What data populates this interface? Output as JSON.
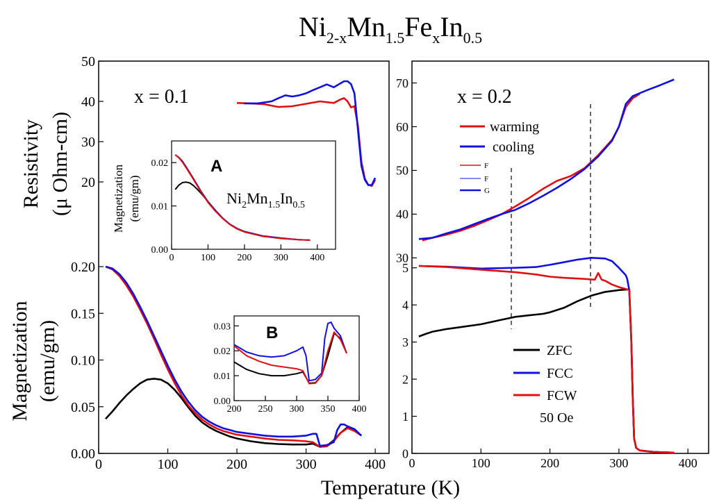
{
  "figure": {
    "title_base": [
      "Ni",
      "Mn",
      "Fe",
      "In"
    ],
    "title_subs": [
      "2-x",
      "1.5",
      "x",
      "0.5"
    ],
    "xlabel": "Temperature (K)"
  },
  "left": {
    "annotation": "x = 0.1",
    "top_ylabel_line1": "Resistivity",
    "top_ylabel_line2": "(μ Ohm-cm)",
    "bottom_ylabel_line1": "Magnetization",
    "bottom_ylabel_line2": "(emu/gm)",
    "inset_a_label": "A",
    "inset_a_ylabel_line1": "Magnetization",
    "inset_a_ylabel_line2": "(emu/gm)",
    "inset_a_compound": [
      "Ni",
      "2",
      "Mn",
      "1.5",
      "In",
      "0.5"
    ],
    "inset_b_label": "B"
  },
  "right": {
    "annotation": "x = 0.2",
    "legend_top": [
      "warming",
      "cooling",
      "F",
      "F",
      "G"
    ],
    "legend_bottom": [
      "ZFC",
      "FCC",
      "FCW"
    ],
    "field_note": "50 Oe"
  },
  "colors": {
    "black": "#000000",
    "blue": "#1010e0",
    "red": "#e01010"
  },
  "chart_data": [
    {
      "id": "left-resistivity",
      "type": "line",
      "xlim": [
        0,
        420
      ],
      "ylim": [
        0,
        50
      ],
      "yticks": [
        20,
        30,
        40,
        50
      ],
      "series": [
        {
          "color": "red",
          "x": [
            200,
            220,
            240,
            260,
            280,
            300,
            320,
            340,
            350,
            355,
            360,
            365,
            370,
            375,
            380,
            385,
            390,
            395,
            400
          ],
          "y": [
            39.6,
            39.5,
            39.3,
            38.6,
            38.8,
            39.4,
            40.0,
            39.6,
            40.5,
            40.8,
            40.0,
            38.5,
            38.8,
            34.0,
            25.0,
            20.8,
            19.3,
            19.0,
            20.5
          ]
        },
        {
          "color": "blue",
          "x": [
            210,
            230,
            250,
            260,
            270,
            280,
            290,
            300,
            310,
            320,
            330,
            340,
            350,
            355,
            360,
            365,
            370,
            375,
            380,
            385,
            390,
            395,
            400
          ],
          "y": [
            39.5,
            39.5,
            40.0,
            40.8,
            41.5,
            41.2,
            41.5,
            42.0,
            42.8,
            43.5,
            44.2,
            43.5,
            44.5,
            45.0,
            45.0,
            44.3,
            42.0,
            33.0,
            24.0,
            20.5,
            19.2,
            19.2,
            21.0
          ]
        }
      ]
    },
    {
      "id": "left-magnetization",
      "type": "line",
      "xlim": [
        0,
        420
      ],
      "ylim": [
        0,
        0.2
      ],
      "xticks": [
        0,
        100,
        200,
        300,
        400
      ],
      "yticks": [
        0.0,
        0.05,
        0.1,
        0.15,
        0.2
      ],
      "series": [
        {
          "color": "black",
          "x": [
            10,
            20,
            30,
            40,
            50,
            60,
            70,
            80,
            90,
            100,
            110,
            120,
            130,
            140,
            150,
            160,
            170,
            180,
            190,
            200,
            220,
            240,
            260,
            280,
            300,
            310,
            320,
            330,
            340,
            350,
            360,
            370,
            380
          ],
          "y": [
            0.037,
            0.045,
            0.054,
            0.062,
            0.069,
            0.075,
            0.079,
            0.08,
            0.079,
            0.075,
            0.068,
            0.059,
            0.049,
            0.04,
            0.033,
            0.028,
            0.024,
            0.021,
            0.018,
            0.016,
            0.013,
            0.011,
            0.01,
            0.0095,
            0.0095,
            0.0105,
            0.007,
            0.008,
            0.014,
            0.022,
            0.028,
            0.025,
            0.019
          ]
        },
        {
          "color": "red",
          "x": [
            10,
            20,
            30,
            40,
            50,
            60,
            70,
            80,
            90,
            100,
            110,
            120,
            130,
            140,
            150,
            160,
            170,
            180,
            190,
            200,
            220,
            240,
            260,
            280,
            300,
            310,
            320,
            330,
            340,
            350,
            360,
            370,
            380
          ],
          "y": [
            0.2,
            0.197,
            0.19,
            0.18,
            0.168,
            0.154,
            0.139,
            0.123,
            0.106,
            0.09,
            0.075,
            0.062,
            0.051,
            0.043,
            0.036,
            0.031,
            0.027,
            0.024,
            0.022,
            0.02,
            0.018,
            0.016,
            0.0145,
            0.014,
            0.013,
            0.012,
            0.007,
            0.0075,
            0.013,
            0.022,
            0.027,
            0.024,
            0.019
          ]
        },
        {
          "color": "blue",
          "x": [
            10,
            20,
            30,
            40,
            50,
            60,
            70,
            80,
            90,
            100,
            110,
            120,
            130,
            140,
            150,
            160,
            170,
            180,
            190,
            200,
            220,
            240,
            260,
            280,
            300,
            310,
            315,
            320,
            330,
            340,
            345,
            350,
            355,
            360,
            370,
            380
          ],
          "y": [
            0.2,
            0.198,
            0.192,
            0.183,
            0.171,
            0.157,
            0.142,
            0.126,
            0.11,
            0.094,
            0.079,
            0.066,
            0.055,
            0.046,
            0.039,
            0.034,
            0.03,
            0.027,
            0.025,
            0.023,
            0.021,
            0.019,
            0.018,
            0.018,
            0.019,
            0.021,
            0.021,
            0.008,
            0.009,
            0.012,
            0.025,
            0.031,
            0.031,
            0.029,
            0.026,
            0.019
          ]
        }
      ]
    },
    {
      "id": "inset-a",
      "type": "line",
      "xlim": [
        0,
        450
      ],
      "ylim": [
        0,
        0.025
      ],
      "xticks": [
        0,
        100,
        200,
        300,
        400
      ],
      "yticks": [
        0.0,
        0.01,
        0.02
      ],
      "series": [
        {
          "color": "black",
          "x": [
            10,
            20,
            30,
            40,
            50,
            60,
            70,
            80,
            100,
            120,
            140,
            160,
            180,
            200,
            250,
            300,
            350,
            380
          ],
          "y": [
            0.0138,
            0.0148,
            0.0154,
            0.0155,
            0.0153,
            0.0147,
            0.0139,
            0.013,
            0.011,
            0.009,
            0.0072,
            0.0057,
            0.0047,
            0.004,
            0.003,
            0.0025,
            0.0022,
            0.0021
          ]
        },
        {
          "color": "blue",
          "x": [
            10,
            20,
            30,
            40,
            60,
            80,
            100,
            120,
            140,
            160,
            180,
            200,
            250,
            300,
            350,
            380
          ],
          "y": [
            0.0218,
            0.0212,
            0.0203,
            0.019,
            0.0163,
            0.0135,
            0.011,
            0.009,
            0.0072,
            0.0058,
            0.0048,
            0.0041,
            0.0031,
            0.0026,
            0.0022,
            0.0021
          ]
        },
        {
          "color": "red",
          "x": [
            10,
            20,
            30,
            40,
            60,
            80,
            100,
            120,
            140,
            160,
            180,
            200,
            250,
            300,
            350,
            380
          ],
          "y": [
            0.0218,
            0.0211,
            0.0201,
            0.0188,
            0.0161,
            0.0133,
            0.0108,
            0.0088,
            0.0071,
            0.0057,
            0.0047,
            0.004,
            0.003,
            0.0025,
            0.0022,
            0.0021
          ]
        }
      ]
    },
    {
      "id": "inset-b",
      "type": "line",
      "xlim": [
        200,
        400
      ],
      "ylim": [
        0,
        0.034
      ],
      "xticks": [
        200,
        250,
        300,
        350,
        400
      ],
      "yticks": [
        0.0,
        0.01,
        0.02,
        0.03
      ],
      "series": [
        {
          "color": "black",
          "x": [
            200,
            220,
            240,
            260,
            280,
            300,
            310,
            320,
            330,
            340,
            350,
            360,
            370,
            380
          ],
          "y": [
            0.0155,
            0.0125,
            0.0108,
            0.01,
            0.01,
            0.0108,
            0.0115,
            0.007,
            0.0072,
            0.01,
            0.018,
            0.027,
            0.025,
            0.019
          ]
        },
        {
          "color": "blue",
          "x": [
            200,
            210,
            220,
            240,
            260,
            280,
            300,
            310,
            315,
            320,
            330,
            340,
            345,
            350,
            355,
            360,
            370,
            380
          ],
          "y": [
            0.0225,
            0.021,
            0.0195,
            0.018,
            0.0175,
            0.018,
            0.02,
            0.0215,
            0.018,
            0.008,
            0.0085,
            0.011,
            0.025,
            0.031,
            0.0315,
            0.029,
            0.026,
            0.019
          ]
        },
        {
          "color": "red",
          "x": [
            200,
            220,
            240,
            260,
            280,
            300,
            310,
            320,
            330,
            340,
            350,
            360,
            370,
            380
          ],
          "y": [
            0.022,
            0.018,
            0.0158,
            0.0142,
            0.0135,
            0.0128,
            0.012,
            0.0068,
            0.007,
            0.01,
            0.02,
            0.0275,
            0.0245,
            0.019
          ]
        }
      ]
    },
    {
      "id": "right-resistivity",
      "type": "line",
      "xlim": [
        0,
        430
      ],
      "ylim": [
        28,
        75
      ],
      "yticks": [
        30,
        40,
        50,
        60,
        70
      ],
      "series": [
        {
          "color": "red",
          "x": [
            15,
            30,
            50,
            70,
            90,
            110,
            130,
            150,
            170,
            190,
            210,
            230,
            250,
            270,
            290,
            300,
            310,
            320,
            330
          ],
          "y": [
            34.0,
            34.6,
            35.3,
            36.2,
            37.3,
            38.6,
            40.0,
            41.8,
            43.7,
            45.8,
            47.6,
            48.7,
            50.5,
            53.5,
            57.0,
            60.0,
            64.5,
            66.5,
            67.5
          ]
        },
        {
          "color": "blue",
          "x": [
            10,
            30,
            50,
            70,
            90,
            110,
            130,
            150,
            170,
            190,
            210,
            230,
            250,
            270,
            290,
            300,
            310,
            320,
            340,
            360,
            380
          ],
          "y": [
            34.3,
            34.6,
            35.6,
            36.5,
            37.7,
            38.9,
            40.0,
            41.0,
            42.5,
            44.2,
            46.0,
            48.0,
            50.3,
            53.2,
            56.8,
            60.0,
            65.2,
            67.0,
            68.3,
            69.5,
            70.8
          ]
        }
      ]
    },
    {
      "id": "right-magnetization",
      "type": "line",
      "xlim": [
        0,
        430
      ],
      "ylim": [
        0,
        5.2
      ],
      "xticks": [
        0,
        100,
        200,
        300,
        400
      ],
      "yticks": [
        0,
        1,
        2,
        3,
        4,
        5
      ],
      "series": [
        {
          "color": "black",
          "x": [
            10,
            20,
            30,
            50,
            70,
            100,
            130,
            150,
            170,
            190,
            200,
            220,
            240,
            260,
            280,
            300,
            315,
            318,
            320,
            322,
            325,
            330,
            350,
            380
          ],
          "y": [
            3.15,
            3.22,
            3.28,
            3.35,
            3.4,
            3.48,
            3.6,
            3.68,
            3.72,
            3.76,
            3.8,
            3.92,
            4.1,
            4.25,
            4.35,
            4.4,
            4.42,
            3.0,
            1.5,
            0.4,
            0.15,
            0.08,
            0.04,
            0.02
          ]
        },
        {
          "color": "blue",
          "x": [
            10,
            50,
            100,
            150,
            180,
            200,
            220,
            240,
            260,
            280,
            290,
            300,
            310,
            312,
            315,
            318,
            320,
            322,
            325,
            330,
            350,
            380
          ],
          "y": [
            5.05,
            5.03,
            4.98,
            5.0,
            5.02,
            5.08,
            5.15,
            5.22,
            5.27,
            5.25,
            5.18,
            5.0,
            4.8,
            4.7,
            4.4,
            3.0,
            1.5,
            0.4,
            0.15,
            0.08,
            0.04,
            0.02
          ]
        },
        {
          "color": "red",
          "x": [
            10,
            50,
            100,
            150,
            180,
            200,
            220,
            250,
            265,
            270,
            275,
            280,
            290,
            300,
            310,
            315,
            318,
            320,
            322,
            325,
            330,
            350,
            380
          ],
          "y": [
            5.05,
            5.02,
            4.95,
            4.88,
            4.82,
            4.76,
            4.73,
            4.7,
            4.68,
            4.86,
            4.68,
            4.65,
            4.55,
            4.48,
            4.43,
            4.4,
            3.0,
            1.5,
            0.4,
            0.15,
            0.08,
            0.04,
            0.02
          ]
        }
      ]
    }
  ]
}
